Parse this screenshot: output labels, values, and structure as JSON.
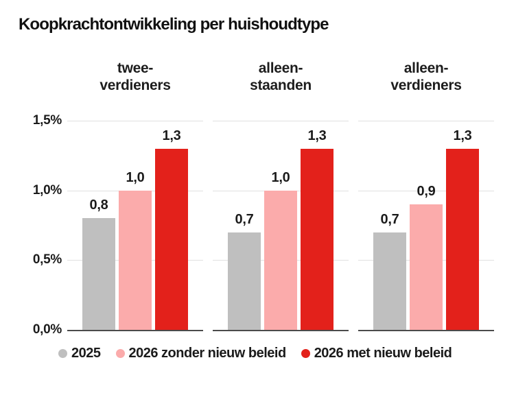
{
  "title": "Koopkrachtontwikkeling per huishoudtype",
  "chart_data": {
    "type": "bar",
    "title": "Koopkrachtontwikkeling per huishoudtype",
    "categories": [
      "twee-verdieners",
      "alleen-staanden",
      "alleen-verdieners"
    ],
    "category_labels": [
      [
        "twee-",
        "verdieners"
      ],
      [
        "alleen-",
        "staanden"
      ],
      [
        "alleen-",
        "verdieners"
      ]
    ],
    "series": [
      {
        "name": "2025",
        "color": "#bfbfbf",
        "values": [
          0.8,
          0.7,
          0.7
        ]
      },
      {
        "name": "2026 zonder nieuw beleid",
        "color": "#fbabab",
        "values": [
          1.0,
          1.0,
          0.9
        ]
      },
      {
        "name": "2026 met nieuw beleid",
        "color": "#e3211b",
        "values": [
          1.3,
          1.3,
          1.3
        ]
      }
    ],
    "value_labels": [
      [
        "0,8",
        "1,0",
        "1,3"
      ],
      [
        "0,7",
        "1,0",
        "1,3"
      ],
      [
        "0,7",
        "0,9",
        "1,3"
      ]
    ],
    "y_axis": {
      "max": 1.5,
      "ticks": [
        {
          "value": 0.0,
          "label": "0,0%"
        },
        {
          "value": 0.5,
          "label": "0,5%"
        },
        {
          "value": 1.0,
          "label": "1,0%"
        },
        {
          "value": 1.5,
          "label": "1,5%"
        }
      ]
    },
    "grid": true,
    "legend_position": "bottom",
    "ylim": [
      0,
      1.5
    ]
  },
  "colors": {
    "background": "#ffffff",
    "text": "#1b1b1b",
    "gridline": "#e0e0e0",
    "baseline": "#4b4b4b"
  }
}
